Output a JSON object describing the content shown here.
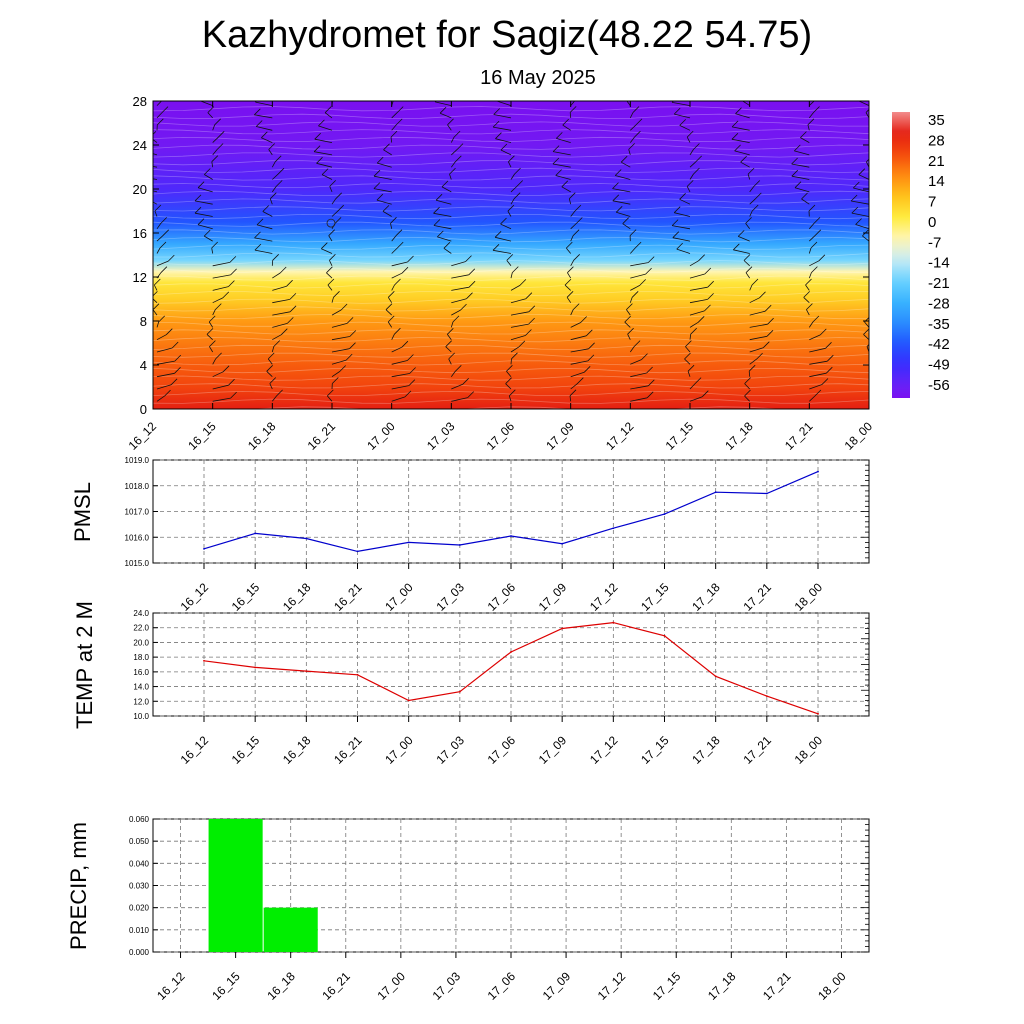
{
  "header": {
    "title": "Kazhydromet for Sagiz(48.22 54.75)",
    "date": "16 May 2025"
  },
  "colorbar": {
    "labels": [
      "35",
      "28",
      "21",
      "14",
      "7",
      "0",
      "-7",
      "-14",
      "-21",
      "-28",
      "-35",
      "-42",
      "-49",
      "-56"
    ],
    "top_color": "#f28c8c",
    "bottom_color": "#7b1ee8"
  },
  "chart_data": [
    {
      "type": "heatmap",
      "name": "temperature-cross-section",
      "categories": [
        "16_12",
        "16_15",
        "16_18",
        "16_21",
        "17_00",
        "17_03",
        "17_06",
        "17_09",
        "17_12",
        "17_15",
        "17_18",
        "17_21",
        "18_00"
      ],
      "yticks": [
        "0",
        "4",
        "8",
        "12",
        "16",
        "20",
        "24",
        "28"
      ],
      "ylim": [
        0,
        28
      ],
      "zrange": [
        -56,
        35
      ],
      "levels": [
        {
          "y": 0,
          "value": 28
        },
        {
          "y": 2,
          "value": 22
        },
        {
          "y": 4,
          "value": 19
        },
        {
          "y": 8,
          "value": 12
        },
        {
          "y": 10,
          "value": 5
        },
        {
          "y": 11.5,
          "value": 1
        },
        {
          "y": 12.5,
          "value": -7
        },
        {
          "y": 13.5,
          "value": -20
        },
        {
          "y": 15,
          "value": -30
        },
        {
          "y": 17,
          "value": -42
        },
        {
          "y": 20,
          "value": -52
        },
        {
          "y": 24,
          "value": -58
        },
        {
          "y": 28,
          "value": -60
        }
      ],
      "wind_barbs": "black barbs at every time step and height level"
    },
    {
      "type": "line",
      "name": "pmsl",
      "ylabel": "PMSL",
      "categories": [
        "16_12",
        "16_15",
        "16_18",
        "16_21",
        "17_00",
        "17_03",
        "17_06",
        "17_09",
        "17_12",
        "17_15",
        "17_18",
        "17_21",
        "18_00"
      ],
      "series": [
        {
          "values": [
            1015.55,
            1016.15,
            1015.95,
            1015.45,
            1015.8,
            1015.7,
            1016.05,
            1015.75,
            1016.35,
            1016.9,
            1017.75,
            1017.7,
            1018.55
          ],
          "color": "#0000cc"
        }
      ],
      "yticks": [
        "1015.0",
        "1016.0",
        "1017.0",
        "1018.0",
        "1019.0"
      ],
      "ylim": [
        1015,
        1019
      ],
      "grid": true
    },
    {
      "type": "line",
      "name": "temp-2m",
      "ylabel": "TEMP at 2 M",
      "categories": [
        "16_12",
        "16_15",
        "16_18",
        "16_21",
        "17_00",
        "17_03",
        "17_06",
        "17_09",
        "17_12",
        "17_15",
        "17_18",
        "17_21",
        "18_00"
      ],
      "series": [
        {
          "values": [
            17.5,
            16.6,
            16.1,
            15.6,
            12.1,
            13.3,
            18.7,
            21.9,
            22.7,
            20.9,
            15.4,
            12.7,
            10.3
          ],
          "color": "#dd0000"
        }
      ],
      "yticks": [
        "10.0",
        "12.0",
        "14.0",
        "16.0",
        "18.0",
        "20.0",
        "22.0",
        "24.0"
      ],
      "ylim": [
        10,
        24
      ],
      "grid": true
    },
    {
      "type": "bar",
      "name": "precip",
      "ylabel": "PRECIP, mm",
      "categories": [
        "16_12",
        "16_15",
        "16_18",
        "16_21",
        "17_00",
        "17_03",
        "17_06",
        "17_09",
        "17_12",
        "17_15",
        "17_18",
        "17_21",
        "18_00"
      ],
      "values": [
        0,
        0.06,
        0.02,
        0,
        0,
        0,
        0,
        0,
        0,
        0,
        0,
        0,
        0
      ],
      "color": "#00ee00",
      "yticks": [
        "0.000",
        "0.010",
        "0.020",
        "0.030",
        "0.040",
        "0.050",
        "0.060"
      ],
      "ylim": [
        0,
        0.06
      ],
      "grid": true
    }
  ]
}
